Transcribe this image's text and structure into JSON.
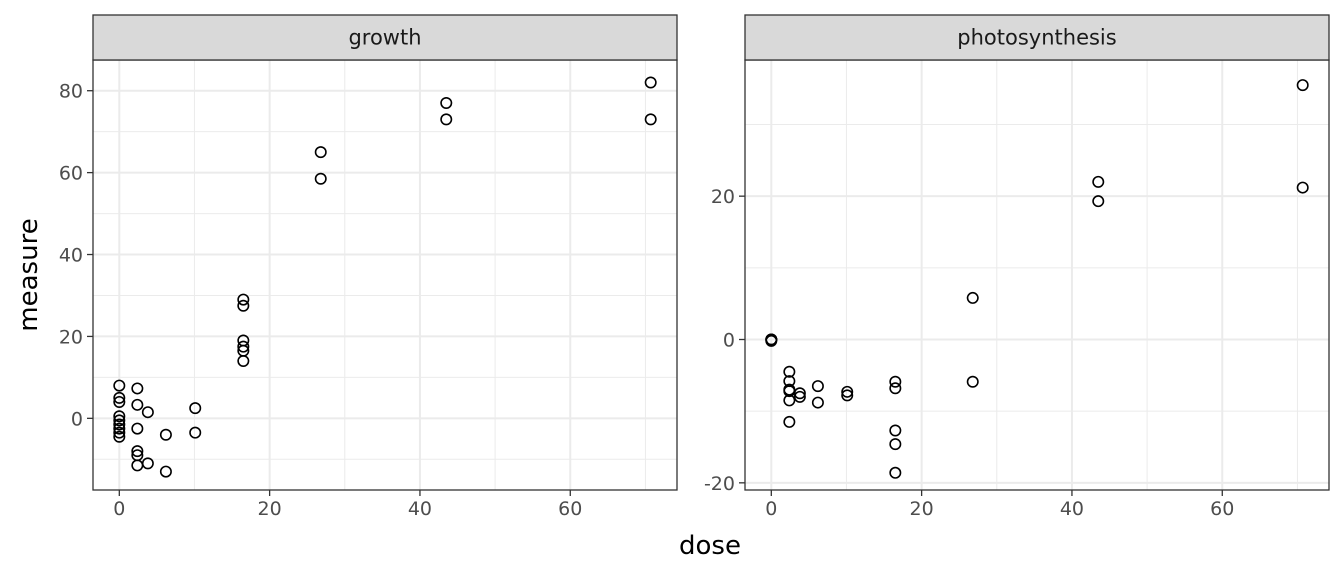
{
  "chart_data": {
    "type": "scatter",
    "xlabel": "dose",
    "ylabel": "measure",
    "grid": true,
    "colors": {
      "point": "#000000",
      "strip": "#d9d9d9",
      "grid": "#ebebeb",
      "border": "#333333"
    },
    "panels": [
      {
        "name": "growth",
        "xlim": [
          -3.5,
          74.2
        ],
        "ylim": [
          -17.5,
          87.5
        ],
        "xticks": [
          0,
          20,
          40,
          60
        ],
        "yticks": [
          0,
          20,
          40,
          60,
          80
        ],
        "xtick_labels": [
          "0",
          "20",
          "40",
          "60"
        ],
        "ytick_labels": [
          "0",
          "20",
          "40",
          "60",
          "80"
        ],
        "points": [
          {
            "x": 0,
            "y": 8
          },
          {
            "x": 0,
            "y": 5
          },
          {
            "x": 0,
            "y": 4
          },
          {
            "x": 0,
            "y": 0.5
          },
          {
            "x": 0,
            "y": -0.5
          },
          {
            "x": 0,
            "y": -1.5
          },
          {
            "x": 0,
            "y": -2.5
          },
          {
            "x": 0,
            "y": -3.5
          },
          {
            "x": 0,
            "y": -4.5
          },
          {
            "x": 2.4,
            "y": 7.3
          },
          {
            "x": 2.4,
            "y": 3.3
          },
          {
            "x": 2.4,
            "y": -2.5
          },
          {
            "x": 2.4,
            "y": -8
          },
          {
            "x": 2.4,
            "y": -9
          },
          {
            "x": 2.4,
            "y": -11.5
          },
          {
            "x": 3.8,
            "y": 1.5
          },
          {
            "x": 3.8,
            "y": -11
          },
          {
            "x": 6.2,
            "y": -4
          },
          {
            "x": 6.2,
            "y": -13
          },
          {
            "x": 10.1,
            "y": 2.5
          },
          {
            "x": 10.1,
            "y": -3.5
          },
          {
            "x": 16.5,
            "y": 29
          },
          {
            "x": 16.5,
            "y": 27.5
          },
          {
            "x": 16.5,
            "y": 19
          },
          {
            "x": 16.5,
            "y": 17.5
          },
          {
            "x": 16.5,
            "y": 16.5
          },
          {
            "x": 16.5,
            "y": 14
          },
          {
            "x": 26.8,
            "y": 65
          },
          {
            "x": 26.8,
            "y": 58.5
          },
          {
            "x": 43.5,
            "y": 77
          },
          {
            "x": 43.5,
            "y": 73
          },
          {
            "x": 70.7,
            "y": 82
          },
          {
            "x": 70.7,
            "y": 73
          }
        ]
      },
      {
        "name": "photosynthesis",
        "xlim": [
          -3.5,
          74.2
        ],
        "ylim": [
          -21,
          39
        ],
        "xticks": [
          0,
          20,
          40,
          60
        ],
        "yticks": [
          -20,
          0,
          20
        ],
        "xtick_labels": [
          "0",
          "20",
          "40",
          "60"
        ],
        "ytick_labels": [
          "-20",
          "0",
          "20"
        ],
        "points": [
          {
            "x": 0,
            "y": 0
          },
          {
            "x": 0,
            "y": 0
          },
          {
            "x": 0,
            "y": 0
          },
          {
            "x": 0,
            "y": -0.2
          },
          {
            "x": 2.4,
            "y": -4.5
          },
          {
            "x": 2.4,
            "y": -5.8
          },
          {
            "x": 2.4,
            "y": -7
          },
          {
            "x": 2.4,
            "y": -7.2
          },
          {
            "x": 2.4,
            "y": -8.5
          },
          {
            "x": 2.4,
            "y": -11.5
          },
          {
            "x": 3.8,
            "y": -7.5
          },
          {
            "x": 3.8,
            "y": -8
          },
          {
            "x": 6.2,
            "y": -6.5
          },
          {
            "x": 6.2,
            "y": -8.8
          },
          {
            "x": 10.1,
            "y": -7.3
          },
          {
            "x": 10.1,
            "y": -7.8
          },
          {
            "x": 16.5,
            "y": -5.9
          },
          {
            "x": 16.5,
            "y": -6.8
          },
          {
            "x": 16.5,
            "y": -12.7
          },
          {
            "x": 16.5,
            "y": -14.6
          },
          {
            "x": 16.5,
            "y": -18.6
          },
          {
            "x": 26.8,
            "y": 5.8
          },
          {
            "x": 26.8,
            "y": -5.9
          },
          {
            "x": 43.5,
            "y": 22
          },
          {
            "x": 43.5,
            "y": 19.3
          },
          {
            "x": 70.7,
            "y": 35.5
          },
          {
            "x": 70.7,
            "y": 21.2
          }
        ]
      }
    ]
  }
}
